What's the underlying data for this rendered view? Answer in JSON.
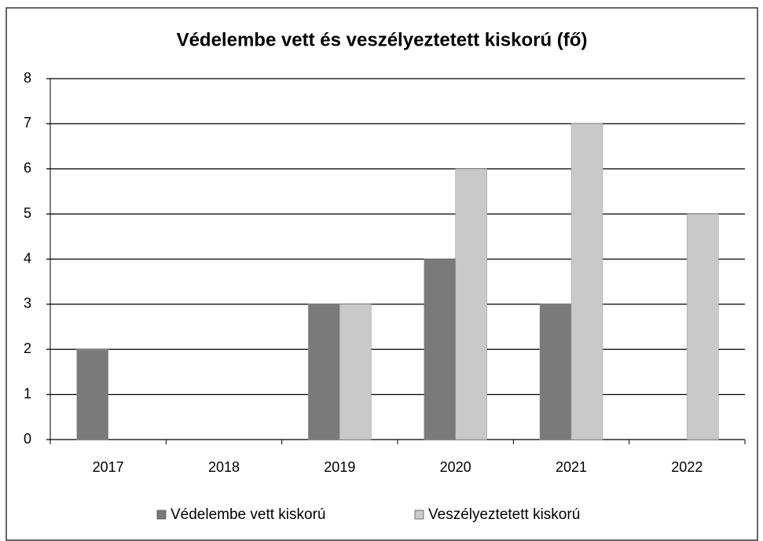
{
  "chart_data": {
    "type": "bar",
    "title": "Védelembe vett és veszélyeztetett kiskorú (fő)",
    "categories": [
      "2017",
      "2018",
      "2019",
      "2020",
      "2021",
      "2022"
    ],
    "series": [
      {
        "name": "Védelembe vett kiskorú",
        "color": "#7a7a7a",
        "values": [
          2,
          0,
          3,
          4,
          3,
          0
        ]
      },
      {
        "name": "Veszélyeztetett kiskorú",
        "color": "#c9c9c9",
        "values": [
          0,
          0,
          3,
          6,
          7,
          5
        ]
      }
    ],
    "ylim": [
      0,
      8
    ],
    "yticks": [
      0,
      1,
      2,
      3,
      4,
      5,
      6,
      7,
      8
    ],
    "grid": true,
    "legend": "bottom"
  }
}
